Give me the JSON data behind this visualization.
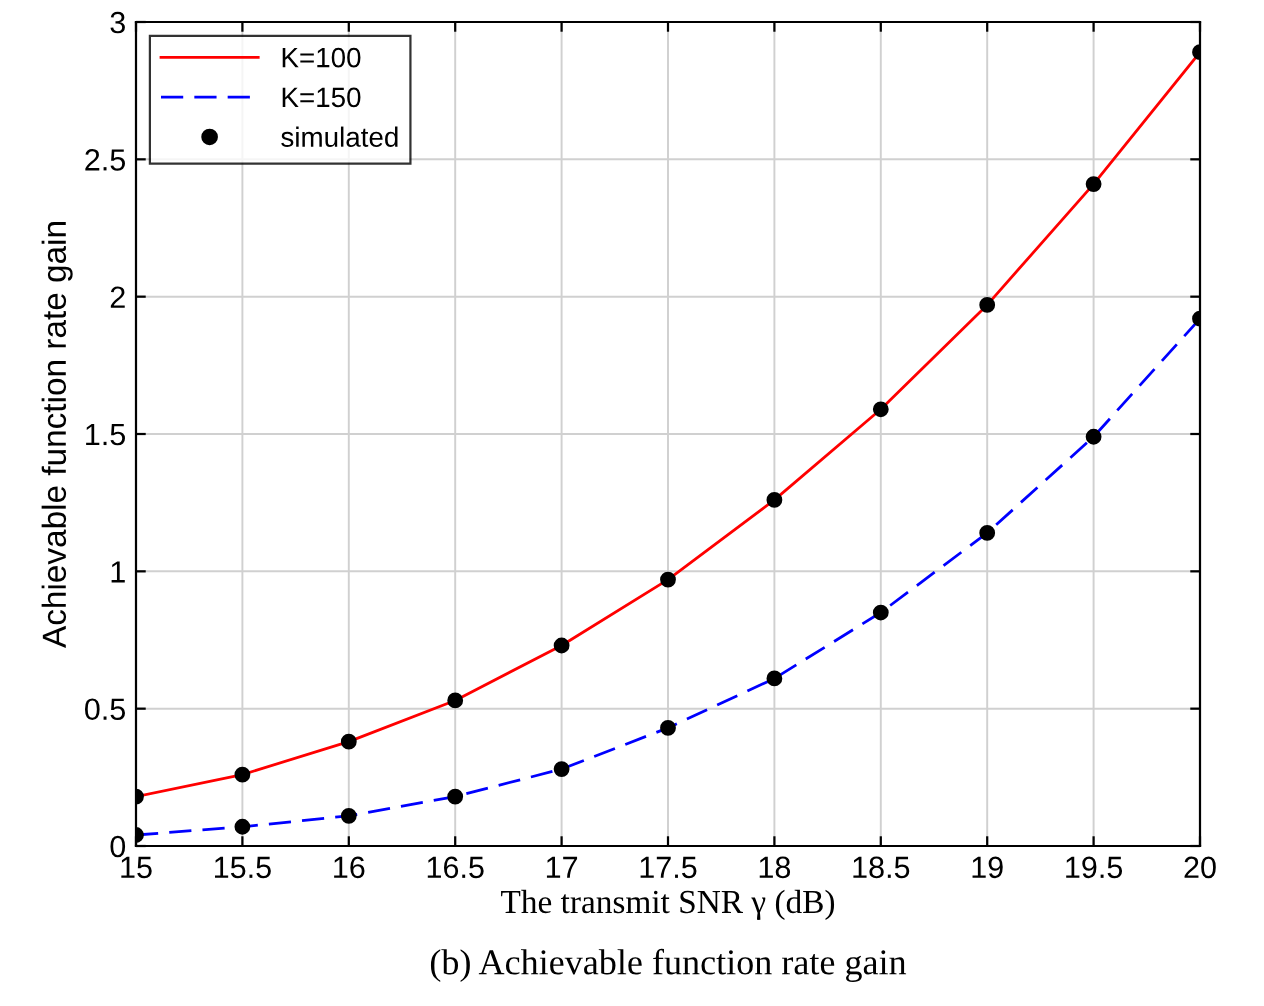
{
  "chart_data": {
    "type": "line",
    "xlabel": "The transmit SNR γ (dB)",
    "ylabel": "Achievable function rate gain",
    "x": [
      15,
      15.5,
      16,
      16.5,
      17,
      17.5,
      18,
      18.5,
      19,
      19.5,
      20
    ],
    "series": [
      {
        "name": "K=100",
        "color": "#ff0000",
        "line_style": "solid",
        "marker": "none",
        "values": [
          0.18,
          0.26,
          0.38,
          0.53,
          0.73,
          0.97,
          1.26,
          1.59,
          1.97,
          2.41,
          2.89
        ]
      },
      {
        "name": "K=150",
        "color": "#0000ff",
        "line_style": "dashed",
        "marker": "none",
        "values": [
          0.04,
          0.07,
          0.11,
          0.18,
          0.28,
          0.43,
          0.61,
          0.85,
          1.14,
          1.49,
          1.92
        ]
      },
      {
        "name": "simulated",
        "type": "scatter",
        "color": "#000000",
        "marker": "circle",
        "x": [
          15,
          15.5,
          16,
          16.5,
          17,
          17.5,
          18,
          18.5,
          19,
          19.5,
          20,
          15,
          15.5,
          16,
          16.5,
          17,
          17.5,
          18,
          18.5,
          19,
          19.5,
          20
        ],
        "values": [
          0.18,
          0.26,
          0.38,
          0.53,
          0.73,
          0.97,
          1.26,
          1.59,
          1.97,
          2.41,
          2.89,
          0.04,
          0.07,
          0.11,
          0.18,
          0.28,
          0.43,
          0.61,
          0.85,
          1.14,
          1.49,
          1.92
        ]
      }
    ],
    "xlim": [
      15,
      20
    ],
    "xticks": [
      15,
      15.5,
      16,
      16.5,
      17,
      17.5,
      18,
      18.5,
      19,
      19.5,
      20
    ],
    "ylim": [
      0,
      3
    ],
    "yticks": [
      0,
      0.5,
      1,
      1.5,
      2,
      2.5,
      3
    ],
    "grid": true,
    "legend": "top left",
    "annotations": [
      "(b) Achievable function rate gain"
    ]
  }
}
